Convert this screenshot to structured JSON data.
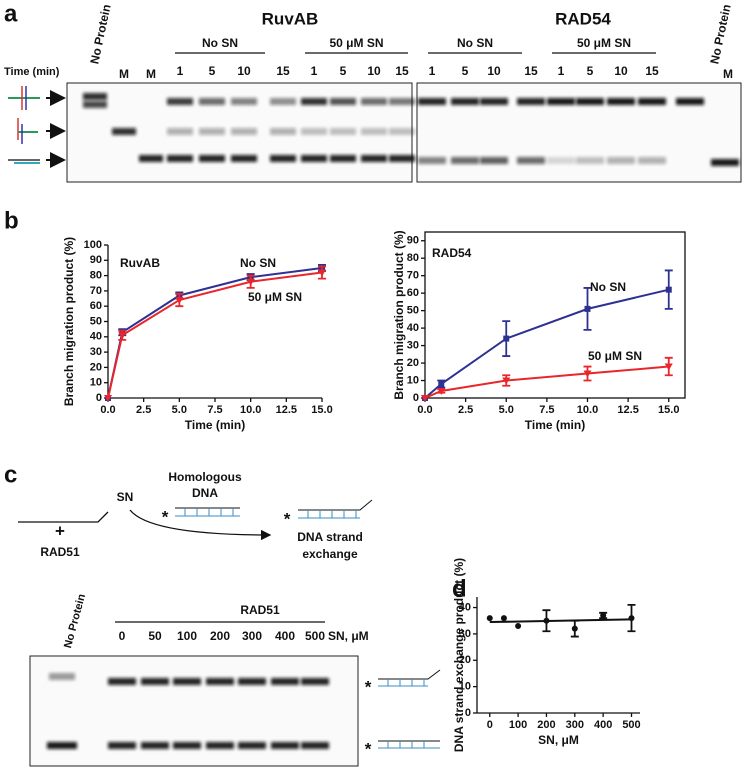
{
  "figure": {
    "panel_labels": [
      "a",
      "b",
      "c",
      "d"
    ]
  },
  "gel_a": {
    "time_label": "Time (min)",
    "no_protein": "No Protein",
    "marker": "M",
    "groups": [
      {
        "title": "RuvAB",
        "subgroups": [
          {
            "label": "No SN",
            "times": [
              "1",
              "5",
              "10",
              "15"
            ]
          },
          {
            "label": "50 μM SN",
            "times": [
              "1",
              "5",
              "10",
              "15"
            ]
          }
        ]
      },
      {
        "title": "RAD54",
        "subgroups": [
          {
            "label": "No SN",
            "times": [
              "1",
              "5",
              "10",
              "15"
            ]
          },
          {
            "label": "50 μM SN",
            "times": [
              "1",
              "5",
              "10",
              "15"
            ]
          }
        ]
      }
    ]
  },
  "diagram_c": {
    "plus": "+",
    "rad51": "RAD51",
    "sn": "SN",
    "homologous_dna": [
      "Homologous",
      "DNA"
    ],
    "asterisk": "*",
    "product": [
      "DNA strand",
      "exchange"
    ]
  },
  "gel_c": {
    "no_protein": "No Protein",
    "protein": "RAD51",
    "sn_levels": [
      "0",
      "50",
      "100",
      "200",
      "300",
      "400",
      "500"
    ],
    "sn_unit": "SN, μM",
    "asterisk": "*"
  },
  "chart_data": [
    {
      "type": "line",
      "title": "RuvAB",
      "x": [
        0,
        1,
        5,
        10,
        15
      ],
      "series": [
        {
          "name": "No SN",
          "color": "#2e3192",
          "marker": "square",
          "values": [
            0,
            43,
            67,
            79,
            85
          ],
          "errors": [
            null,
            2,
            2,
            2,
            2
          ]
        },
        {
          "name": "50 μM SN",
          "color": "#e8262b",
          "marker": "triangle",
          "values": [
            0,
            41,
            64,
            76,
            82
          ],
          "errors": [
            null,
            3,
            4,
            4,
            4
          ]
        }
      ],
      "xlim": [
        0,
        15
      ],
      "xticks": [
        {
          "value": 0,
          "label": "0.0"
        },
        {
          "value": 2.5,
          "label": "2.5"
        },
        {
          "value": 5,
          "label": "5.0"
        },
        {
          "value": 7.5,
          "label": "7.5"
        },
        {
          "value": 10,
          "label": "10.0"
        },
        {
          "value": 12.5,
          "label": "12.5"
        },
        {
          "value": 15,
          "label": "15.0"
        }
      ],
      "ylim": [
        0,
        100
      ],
      "yticks": [
        0,
        10,
        20,
        30,
        40,
        50,
        60,
        70,
        80,
        90,
        100
      ],
      "xlabel": "Time (min)",
      "ylabel": "Branch migration product (%)",
      "frame": false
    },
    {
      "type": "line",
      "title": "RAD54",
      "x": [
        0,
        1,
        5,
        10,
        15
      ],
      "series": [
        {
          "name": "No SN",
          "color": "#2e3192",
          "marker": "square",
          "values": [
            0,
            8,
            34,
            51,
            62
          ],
          "errors": [
            null,
            2,
            10,
            12,
            11
          ]
        },
        {
          "name": "50 μM SN",
          "color": "#e8262b",
          "marker": "triangle",
          "values": [
            0,
            4,
            10,
            14,
            18
          ],
          "errors": [
            null,
            1,
            3,
            4,
            5
          ]
        }
      ],
      "xlim": [
        0,
        16
      ],
      "xticks": [
        {
          "value": 0,
          "label": "0.0"
        },
        {
          "value": 2.5,
          "label": "2.5"
        },
        {
          "value": 5,
          "label": "5.0"
        },
        {
          "value": 7.5,
          "label": "7.5"
        },
        {
          "value": 10,
          "label": "10.0"
        },
        {
          "value": 12.5,
          "label": "12.5"
        },
        {
          "value": 15,
          "label": "15.0"
        }
      ],
      "ylim": [
        0,
        95
      ],
      "yticks": [
        0,
        10,
        20,
        30,
        40,
        50,
        60,
        70,
        80,
        90
      ],
      "xlabel": "Time (min)",
      "ylabel": "Branch migration product (%)",
      "frame": true
    },
    {
      "type": "scatter",
      "x": [
        0,
        50,
        100,
        200,
        300,
        400,
        500
      ],
      "series": [
        {
          "color": "#111111",
          "marker": "circle",
          "values": [
            36,
            36,
            33,
            35,
            32,
            37,
            36
          ],
          "errors": [
            null,
            null,
            null,
            4,
            3,
            1,
            5
          ]
        }
      ],
      "fit": {
        "x": [
          0,
          500
        ],
        "values": [
          34.5,
          35.5
        ]
      },
      "xlim": [
        -45,
        530
      ],
      "xticks": [
        0,
        100,
        200,
        300,
        400,
        500
      ],
      "ylim": [
        0,
        44
      ],
      "yticks": [
        0,
        10,
        20,
        30,
        40
      ],
      "xlabel": "SN, μM",
      "ylabel": "DNA strand exchange product (%)",
      "frame": false
    }
  ]
}
